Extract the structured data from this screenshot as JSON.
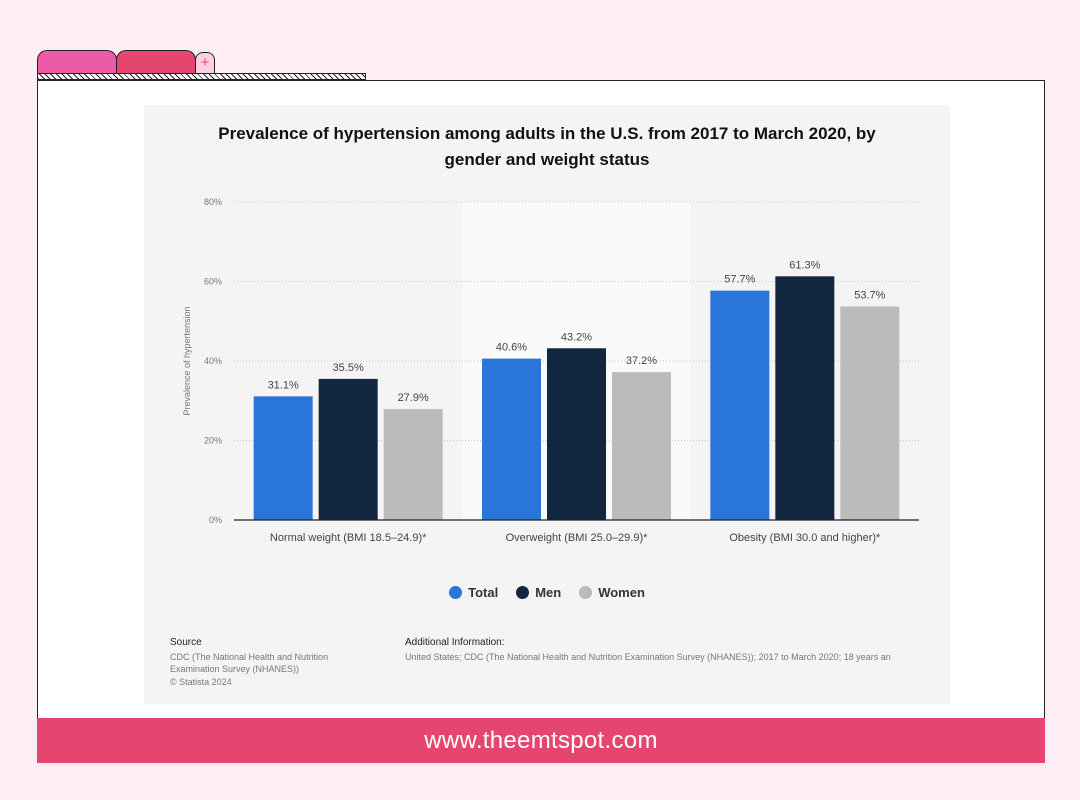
{
  "chart_data": {
    "type": "bar",
    "title": "Prevalence of hypertension among adults in the U.S. from 2017 to March 2020, by gender and weight status",
    "title_lines": [
      "Prevalence of hypertension among adults in the U.S. from 2017 to March 2020, by",
      "gender and weight status"
    ],
    "ylabel": "Prevalence of hypertension",
    "xlabel": "",
    "ylim": [
      0,
      80
    ],
    "yticks": [
      "0%",
      "20%",
      "40%",
      "60%",
      "80%"
    ],
    "categories": [
      "Normal weight (BMI 18.5–24.9)*",
      "Overweight (BMI 25.0–29.9)*",
      "Obesity (BMI 30.0 and higher)*"
    ],
    "series": [
      {
        "name": "Total",
        "color": "#2a75d9",
        "values": [
          31.1,
          40.6,
          57.7
        ],
        "labels": [
          "31.1%",
          "40.6%",
          "57.7%"
        ]
      },
      {
        "name": "Men",
        "color": "#12263f",
        "values": [
          35.5,
          43.2,
          61.3
        ],
        "labels": [
          "35.5%",
          "43.2%",
          "61.3%"
        ]
      },
      {
        "name": "Women",
        "color": "#bbbbbb",
        "values": [
          27.9,
          37.2,
          53.7
        ],
        "labels": [
          "27.9%",
          "37.2%",
          "53.7%"
        ]
      }
    ],
    "grid": true,
    "legend_position": "bottom",
    "highlighted_category_index": 1
  },
  "source": {
    "heading": "Source",
    "lines": [
      "CDC (The National Health and Nutrition",
      "Examination Survey (NHANES))"
    ],
    "copyright": "© Statista 2024"
  },
  "additional_info": {
    "heading": "Additional Information:",
    "text": "United States; CDC (The National Health and Nutrition Examination Survey (NHANES)); 2017 to March 2020; 18 years an"
  },
  "footer": {
    "url": "www.theemtspot.com"
  },
  "tabs": {
    "plus_label": "+"
  }
}
